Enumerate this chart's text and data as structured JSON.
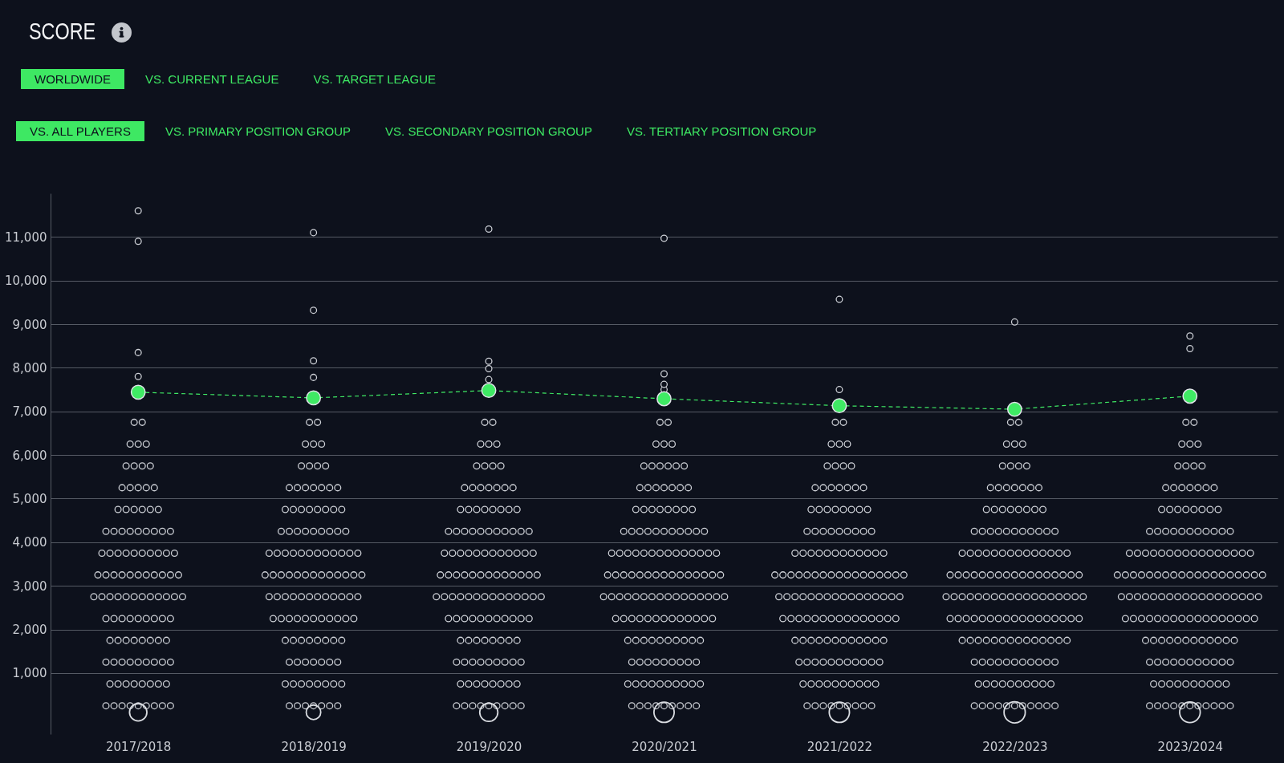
{
  "chart_data": {
    "type": "scatter",
    "title": "SCORE",
    "annotations": [
      "WORLDWIDE",
      "VS. CURRENT LEAGUE",
      "VS. TARGET LEAGUE",
      "VS. ALL PLAYERS",
      "VS. PRIMARY POSITION GROUP",
      "VS. SECONDARY POSITION GROUP",
      "VS. TERTIARY POSITION GROUP"
    ],
    "categories": [
      "2017/2018",
      "2018/2019",
      "2019/2020",
      "2020/2021",
      "2021/2022",
      "2022/2023",
      "2023/2024"
    ],
    "ylim": [
      -400,
      12000
    ],
    "yticks": [
      {
        "value": 1000,
        "label": "1,000"
      },
      {
        "value": 2000,
        "label": "2,000"
      },
      {
        "value": 3000,
        "label": "3,000"
      },
      {
        "value": 4000,
        "label": "4,000"
      },
      {
        "value": 5000,
        "label": "5,000"
      },
      {
        "value": 6000,
        "label": "6,000"
      },
      {
        "value": 7000,
        "label": "7,000"
      },
      {
        "value": 8000,
        "label": "8,000"
      },
      {
        "value": 9000,
        "label": "9,000"
      },
      {
        "value": 10000,
        "label": "10,000"
      },
      {
        "value": 11000,
        "label": "11,000"
      }
    ],
    "grid": "y",
    "marker": "circle",
    "series": [
      {
        "color": "#cdd0d6",
        "x": [
          "2017/2018",
          "2017/2018",
          "2017/2018",
          "2017/2018",
          "2017/2018",
          "2017/2018",
          "2017/2018",
          "2017/2018",
          "2017/2018",
          "2017/2018",
          "2017/2018",
          "2017/2018",
          "2017/2018",
          "2017/2018",
          "2017/2018",
          "2017/2018",
          "2017/2018",
          "2017/2018",
          "2017/2018",
          "2017/2018",
          "2017/2018",
          "2017/2018",
          "2017/2018",
          "2017/2018",
          "2017/2018",
          "2017/2018",
          "2017/2018",
          "2017/2018",
          "2017/2018",
          "2017/2018",
          "2017/2018",
          "2017/2018",
          "2017/2018",
          "2017/2018",
          "2017/2018",
          "2017/2018",
          "2017/2018",
          "2017/2018",
          "2017/2018",
          "2017/2018",
          "2017/2018",
          "2017/2018",
          "2017/2018",
          "2017/2018",
          "2017/2018",
          "2017/2018",
          "2017/2018",
          "2017/2018",
          "2017/2018",
          "2017/2018",
          "2017/2018",
          "2017/2018",
          "2017/2018",
          "2017/2018",
          "2017/2018",
          "2017/2018",
          "2017/2018",
          "2017/2018",
          "2017/2018",
          "2017/2018",
          "2017/2018",
          "2017/2018",
          "2017/2018",
          "2017/2018",
          "2017/2018",
          "2017/2018",
          "2017/2018",
          "2017/2018",
          "2017/2018",
          "2017/2018",
          "2017/2018",
          "2017/2018",
          "2017/2018",
          "2017/2018",
          "2017/2018",
          "2017/2018",
          "2017/2018",
          "2017/2018",
          "2017/2018",
          "2017/2018",
          "2017/2018",
          "2017/2018",
          "2017/2018",
          "2017/2018",
          "2017/2018",
          "2017/2018",
          "2017/2018",
          "2017/2018",
          "2017/2018",
          "2017/2018",
          "2017/2018",
          "2017/2018",
          "2017/2018",
          "2017/2018",
          "2017/2018",
          "2017/2018",
          "2017/2018",
          "2017/2018",
          "2017/2018",
          "2017/2018",
          "2017/2018",
          "2017/2018",
          "2017/2018",
          "2017/2018",
          "2017/2018",
          "2017/2018",
          "2017/2018",
          "2017/2018",
          "2017/2018"
        ],
        "values": [
          250,
          250,
          250,
          250,
          250,
          250,
          250,
          250,
          250,
          750,
          750,
          750,
          750,
          750,
          750,
          750,
          750,
          1250,
          1250,
          1250,
          1250,
          1250,
          1250,
          1250,
          1250,
          1250,
          1750,
          1750,
          1750,
          1750,
          1750,
          1750,
          1750,
          1750,
          2250,
          2250,
          2250,
          2250,
          2250,
          2250,
          2250,
          2250,
          2250,
          2750,
          2750,
          2750,
          2750,
          2750,
          2750,
          2750,
          2750,
          2750,
          2750,
          2750,
          2750,
          3250,
          3250,
          3250,
          3250,
          3250,
          3250,
          3250,
          3250,
          3250,
          3250,
          3250,
          3750,
          3750,
          3750,
          3750,
          3750,
          3750,
          3750,
          3750,
          3750,
          3750,
          4250,
          4250,
          4250,
          4250,
          4250,
          4250,
          4250,
          4250,
          4250,
          4750,
          4750,
          4750,
          4750,
          4750,
          4750,
          5250,
          5250,
          5250,
          5250,
          5250,
          5750,
          5750,
          5750,
          5750,
          6250,
          6250,
          6250,
          6750,
          6750,
          7800,
          8350,
          10900,
          11600
        ]
      },
      {
        "color": "#cdd0d6",
        "x": [
          "2018/2019",
          "2018/2019",
          "2018/2019",
          "2018/2019",
          "2018/2019",
          "2018/2019",
          "2018/2019",
          "2018/2019",
          "2018/2019",
          "2018/2019",
          "2018/2019",
          "2018/2019",
          "2018/2019",
          "2018/2019",
          "2018/2019",
          "2018/2019",
          "2018/2019",
          "2018/2019",
          "2018/2019",
          "2018/2019",
          "2018/2019",
          "2018/2019",
          "2018/2019",
          "2018/2019",
          "2018/2019",
          "2018/2019",
          "2018/2019",
          "2018/2019",
          "2018/2019",
          "2018/2019",
          "2018/2019",
          "2018/2019",
          "2018/2019",
          "2018/2019",
          "2018/2019",
          "2018/2019",
          "2018/2019",
          "2018/2019",
          "2018/2019",
          "2018/2019",
          "2018/2019",
          "2018/2019",
          "2018/2019",
          "2018/2019",
          "2018/2019",
          "2018/2019",
          "2018/2019",
          "2018/2019",
          "2018/2019",
          "2018/2019",
          "2018/2019",
          "2018/2019",
          "2018/2019",
          "2018/2019",
          "2018/2019",
          "2018/2019",
          "2018/2019",
          "2018/2019",
          "2018/2019",
          "2018/2019",
          "2018/2019",
          "2018/2019",
          "2018/2019",
          "2018/2019",
          "2018/2019",
          "2018/2019",
          "2018/2019",
          "2018/2019",
          "2018/2019",
          "2018/2019",
          "2018/2019",
          "2018/2019",
          "2018/2019",
          "2018/2019",
          "2018/2019",
          "2018/2019",
          "2018/2019",
          "2018/2019",
          "2018/2019",
          "2018/2019",
          "2018/2019",
          "2018/2019",
          "2018/2019",
          "2018/2019",
          "2018/2019",
          "2018/2019",
          "2018/2019",
          "2018/2019",
          "2018/2019",
          "2018/2019",
          "2018/2019",
          "2018/2019",
          "2018/2019",
          "2018/2019",
          "2018/2019",
          "2018/2019",
          "2018/2019",
          "2018/2019",
          "2018/2019",
          "2018/2019",
          "2018/2019",
          "2018/2019",
          "2018/2019",
          "2018/2019",
          "2018/2019",
          "2018/2019",
          "2018/2019",
          "2018/2019",
          "2018/2019",
          "2018/2019",
          "2018/2019",
          "2018/2019",
          "2018/2019",
          "2018/2019",
          "2018/2019"
        ],
        "values": [
          250,
          250,
          250,
          250,
          250,
          250,
          250,
          750,
          750,
          750,
          750,
          750,
          750,
          750,
          750,
          1250,
          1250,
          1250,
          1250,
          1250,
          1250,
          1250,
          1750,
          1750,
          1750,
          1750,
          1750,
          1750,
          1750,
          1750,
          2250,
          2250,
          2250,
          2250,
          2250,
          2250,
          2250,
          2250,
          2250,
          2250,
          2250,
          2750,
          2750,
          2750,
          2750,
          2750,
          2750,
          2750,
          2750,
          2750,
          2750,
          2750,
          2750,
          3250,
          3250,
          3250,
          3250,
          3250,
          3250,
          3250,
          3250,
          3250,
          3250,
          3250,
          3250,
          3250,
          3750,
          3750,
          3750,
          3750,
          3750,
          3750,
          3750,
          3750,
          3750,
          3750,
          3750,
          3750,
          4250,
          4250,
          4250,
          4250,
          4250,
          4250,
          4250,
          4250,
          4250,
          4750,
          4750,
          4750,
          4750,
          4750,
          4750,
          4750,
          4750,
          5250,
          5250,
          5250,
          5250,
          5250,
          5250,
          5250,
          5750,
          5750,
          5750,
          5750,
          6250,
          6250,
          6250,
          6750,
          6750,
          7780,
          8160,
          9320,
          11100
        ]
      },
      {
        "color": "#cdd0d6",
        "x": [
          "2019/2020",
          "2019/2020",
          "2019/2020",
          "2019/2020",
          "2019/2020",
          "2019/2020",
          "2019/2020",
          "2019/2020",
          "2019/2020",
          "2019/2020",
          "2019/2020",
          "2019/2020",
          "2019/2020",
          "2019/2020",
          "2019/2020",
          "2019/2020",
          "2019/2020",
          "2019/2020",
          "2019/2020",
          "2019/2020",
          "2019/2020",
          "2019/2020",
          "2019/2020",
          "2019/2020",
          "2019/2020",
          "2019/2020",
          "2019/2020",
          "2019/2020",
          "2019/2020",
          "2019/2020",
          "2019/2020",
          "2019/2020",
          "2019/2020",
          "2019/2020",
          "2019/2020",
          "2019/2020",
          "2019/2020",
          "2019/2020",
          "2019/2020",
          "2019/2020",
          "2019/2020",
          "2019/2020",
          "2019/2020",
          "2019/2020",
          "2019/2020",
          "2019/2020",
          "2019/2020",
          "2019/2020",
          "2019/2020",
          "2019/2020",
          "2019/2020",
          "2019/2020",
          "2019/2020",
          "2019/2020",
          "2019/2020",
          "2019/2020",
          "2019/2020",
          "2019/2020",
          "2019/2020",
          "2019/2020",
          "2019/2020",
          "2019/2020",
          "2019/2020",
          "2019/2020",
          "2019/2020",
          "2019/2020",
          "2019/2020",
          "2019/2020",
          "2019/2020",
          "2019/2020",
          "2019/2020",
          "2019/2020",
          "2019/2020",
          "2019/2020",
          "2019/2020",
          "2019/2020",
          "2019/2020",
          "2019/2020",
          "2019/2020",
          "2019/2020",
          "2019/2020",
          "2019/2020",
          "2019/2020",
          "2019/2020",
          "2019/2020",
          "2019/2020",
          "2019/2020",
          "2019/2020",
          "2019/2020",
          "2019/2020",
          "2019/2020",
          "2019/2020",
          "2019/2020",
          "2019/2020",
          "2019/2020",
          "2019/2020",
          "2019/2020",
          "2019/2020",
          "2019/2020",
          "2019/2020",
          "2019/2020",
          "2019/2020",
          "2019/2020",
          "2019/2020",
          "2019/2020",
          "2019/2020",
          "2019/2020",
          "2019/2020",
          "2019/2020",
          "2019/2020",
          "2019/2020",
          "2019/2020",
          "2019/2020",
          "2019/2020",
          "2019/2020",
          "2019/2020",
          "2019/2020",
          "2019/2020",
          "2019/2020",
          "2019/2020",
          "2019/2020",
          "2019/2020",
          "2019/2020"
        ],
        "values": [
          250,
          250,
          250,
          250,
          250,
          250,
          250,
          250,
          250,
          750,
          750,
          750,
          750,
          750,
          750,
          750,
          750,
          1250,
          1250,
          1250,
          1250,
          1250,
          1250,
          1250,
          1250,
          1250,
          1750,
          1750,
          1750,
          1750,
          1750,
          1750,
          1750,
          1750,
          2250,
          2250,
          2250,
          2250,
          2250,
          2250,
          2250,
          2250,
          2250,
          2250,
          2250,
          2750,
          2750,
          2750,
          2750,
          2750,
          2750,
          2750,
          2750,
          2750,
          2750,
          2750,
          2750,
          2750,
          2750,
          3250,
          3250,
          3250,
          3250,
          3250,
          3250,
          3250,
          3250,
          3250,
          3250,
          3250,
          3250,
          3250,
          3750,
          3750,
          3750,
          3750,
          3750,
          3750,
          3750,
          3750,
          3750,
          3750,
          3750,
          3750,
          4250,
          4250,
          4250,
          4250,
          4250,
          4250,
          4250,
          4250,
          4250,
          4250,
          4250,
          4750,
          4750,
          4750,
          4750,
          4750,
          4750,
          4750,
          4750,
          5250,
          5250,
          5250,
          5250,
          5250,
          5250,
          5250,
          5750,
          5750,
          5750,
          5750,
          6250,
          6250,
          6250,
          6750,
          6750,
          7730,
          7980,
          8150,
          11180
        ]
      },
      {
        "color": "#cdd0d6",
        "x": [
          "2020/2021",
          "2020/2021",
          "2020/2021",
          "2020/2021",
          "2020/2021",
          "2020/2021",
          "2020/2021",
          "2020/2021",
          "2020/2021",
          "2020/2021",
          "2020/2021",
          "2020/2021",
          "2020/2021",
          "2020/2021",
          "2020/2021",
          "2020/2021",
          "2020/2021",
          "2020/2021",
          "2020/2021",
          "2020/2021",
          "2020/2021",
          "2020/2021",
          "2020/2021",
          "2020/2021",
          "2020/2021",
          "2020/2021",
          "2020/2021",
          "2020/2021",
          "2020/2021",
          "2020/2021",
          "2020/2021",
          "2020/2021",
          "2020/2021",
          "2020/2021",
          "2020/2021",
          "2020/2021",
          "2020/2021",
          "2020/2021",
          "2020/2021",
          "2020/2021",
          "2020/2021",
          "2020/2021",
          "2020/2021",
          "2020/2021",
          "2020/2021",
          "2020/2021",
          "2020/2021",
          "2020/2021",
          "2020/2021",
          "2020/2021",
          "2020/2021",
          "2020/2021",
          "2020/2021",
          "2020/2021",
          "2020/2021",
          "2020/2021",
          "2020/2021",
          "2020/2021",
          "2020/2021",
          "2020/2021",
          "2020/2021",
          "2020/2021",
          "2020/2021",
          "2020/2021",
          "2020/2021",
          "2020/2021",
          "2020/2021",
          "2020/2021",
          "2020/2021",
          "2020/2021",
          "2020/2021",
          "2020/2021",
          "2020/2021",
          "2020/2021",
          "2020/2021",
          "2020/2021",
          "2020/2021",
          "2020/2021",
          "2020/2021",
          "2020/2021",
          "2020/2021",
          "2020/2021",
          "2020/2021",
          "2020/2021",
          "2020/2021",
          "2020/2021",
          "2020/2021",
          "2020/2021",
          "2020/2021",
          "2020/2021",
          "2020/2021",
          "2020/2021",
          "2020/2021",
          "2020/2021",
          "2020/2021",
          "2020/2021",
          "2020/2021",
          "2020/2021",
          "2020/2021",
          "2020/2021",
          "2020/2021",
          "2020/2021",
          "2020/2021",
          "2020/2021",
          "2020/2021",
          "2020/2021",
          "2020/2021",
          "2020/2021",
          "2020/2021",
          "2020/2021",
          "2020/2021",
          "2020/2021",
          "2020/2021",
          "2020/2021",
          "2020/2021",
          "2020/2021",
          "2020/2021",
          "2020/2021",
          "2020/2021",
          "2020/2021",
          "2020/2021",
          "2020/2021",
          "2020/2021",
          "2020/2021",
          "2020/2021",
          "2020/2021",
          "2020/2021",
          "2020/2021",
          "2020/2021",
          "2020/2021",
          "2020/2021",
          "2020/2021",
          "2020/2021",
          "2020/2021",
          "2020/2021",
          "2020/2021",
          "2020/2021"
        ],
        "values": [
          250,
          250,
          250,
          250,
          250,
          250,
          250,
          250,
          250,
          750,
          750,
          750,
          750,
          750,
          750,
          750,
          750,
          750,
          750,
          1250,
          1250,
          1250,
          1250,
          1250,
          1250,
          1250,
          1250,
          1250,
          1750,
          1750,
          1750,
          1750,
          1750,
          1750,
          1750,
          1750,
          1750,
          1750,
          2250,
          2250,
          2250,
          2250,
          2250,
          2250,
          2250,
          2250,
          2250,
          2250,
          2250,
          2250,
          2250,
          2750,
          2750,
          2750,
          2750,
          2750,
          2750,
          2750,
          2750,
          2750,
          2750,
          2750,
          2750,
          2750,
          2750,
          2750,
          2750,
          3250,
          3250,
          3250,
          3250,
          3250,
          3250,
          3250,
          3250,
          3250,
          3250,
          3250,
          3250,
          3250,
          3250,
          3250,
          3750,
          3750,
          3750,
          3750,
          3750,
          3750,
          3750,
          3750,
          3750,
          3750,
          3750,
          3750,
          3750,
          3750,
          4250,
          4250,
          4250,
          4250,
          4250,
          4250,
          4250,
          4250,
          4250,
          4250,
          4250,
          4750,
          4750,
          4750,
          4750,
          4750,
          4750,
          4750,
          4750,
          5250,
          5250,
          5250,
          5250,
          5250,
          5250,
          5250,
          5750,
          5750,
          5750,
          5750,
          5750,
          5750,
          6250,
          6250,
          6250,
          6750,
          6750,
          7500,
          7620,
          7860,
          10970
        ]
      },
      {
        "color": "#cdd0d6",
        "x": [
          "2021/2022",
          "2021/2022",
          "2021/2022",
          "2021/2022",
          "2021/2022",
          "2021/2022",
          "2021/2022",
          "2021/2022",
          "2021/2022",
          "2021/2022",
          "2021/2022",
          "2021/2022",
          "2021/2022",
          "2021/2022",
          "2021/2022",
          "2021/2022",
          "2021/2022",
          "2021/2022",
          "2021/2022",
          "2021/2022",
          "2021/2022",
          "2021/2022",
          "2021/2022",
          "2021/2022",
          "2021/2022",
          "2021/2022",
          "2021/2022",
          "2021/2022",
          "2021/2022",
          "2021/2022",
          "2021/2022",
          "2021/2022",
          "2021/2022",
          "2021/2022",
          "2021/2022",
          "2021/2022",
          "2021/2022",
          "2021/2022",
          "2021/2022",
          "2021/2022",
          "2021/2022",
          "2021/2022",
          "2021/2022",
          "2021/2022",
          "2021/2022",
          "2021/2022",
          "2021/2022",
          "2021/2022",
          "2021/2022",
          "2021/2022",
          "2021/2022",
          "2021/2022",
          "2021/2022",
          "2021/2022",
          "2021/2022",
          "2021/2022",
          "2021/2022",
          "2021/2022",
          "2021/2022",
          "2021/2022",
          "2021/2022",
          "2021/2022",
          "2021/2022",
          "2021/2022",
          "2021/2022",
          "2021/2022",
          "2021/2022",
          "2021/2022",
          "2021/2022",
          "2021/2022",
          "2021/2022",
          "2021/2022",
          "2021/2022",
          "2021/2022",
          "2021/2022",
          "2021/2022",
          "2021/2022",
          "2021/2022",
          "2021/2022",
          "2021/2022",
          "2021/2022",
          "2021/2022",
          "2021/2022",
          "2021/2022",
          "2021/2022",
          "2021/2022",
          "2021/2022",
          "2021/2022",
          "2021/2022",
          "2021/2022",
          "2021/2022",
          "2021/2022",
          "2021/2022",
          "2021/2022",
          "2021/2022",
          "2021/2022",
          "2021/2022",
          "2021/2022",
          "2021/2022",
          "2021/2022",
          "2021/2022",
          "2021/2022",
          "2021/2022",
          "2021/2022",
          "2021/2022",
          "2021/2022",
          "2021/2022",
          "2021/2022",
          "2021/2022",
          "2021/2022",
          "2021/2022",
          "2021/2022",
          "2021/2022",
          "2021/2022",
          "2021/2022",
          "2021/2022",
          "2021/2022",
          "2021/2022",
          "2021/2022",
          "2021/2022",
          "2021/2022",
          "2021/2022",
          "2021/2022",
          "2021/2022",
          "2021/2022",
          "2021/2022",
          "2021/2022",
          "2021/2022",
          "2021/2022",
          "2021/2022",
          "2021/2022",
          "2021/2022",
          "2021/2022",
          "2021/2022",
          "2021/2022",
          "2021/2022",
          "2021/2022"
        ],
        "values": [
          250,
          250,
          250,
          250,
          250,
          250,
          250,
          250,
          250,
          750,
          750,
          750,
          750,
          750,
          750,
          750,
          750,
          750,
          750,
          1250,
          1250,
          1250,
          1250,
          1250,
          1250,
          1250,
          1250,
          1250,
          1250,
          1250,
          1750,
          1750,
          1750,
          1750,
          1750,
          1750,
          1750,
          1750,
          1750,
          1750,
          1750,
          1750,
          2250,
          2250,
          2250,
          2250,
          2250,
          2250,
          2250,
          2250,
          2250,
          2250,
          2250,
          2250,
          2250,
          2250,
          2250,
          2750,
          2750,
          2750,
          2750,
          2750,
          2750,
          2750,
          2750,
          2750,
          2750,
          2750,
          2750,
          2750,
          2750,
          2750,
          2750,
          3250,
          3250,
          3250,
          3250,
          3250,
          3250,
          3250,
          3250,
          3250,
          3250,
          3250,
          3250,
          3250,
          3250,
          3250,
          3250,
          3250,
          3750,
          3750,
          3750,
          3750,
          3750,
          3750,
          3750,
          3750,
          3750,
          3750,
          3750,
          3750,
          4250,
          4250,
          4250,
          4250,
          4250,
          4250,
          4250,
          4250,
          4250,
          4750,
          4750,
          4750,
          4750,
          4750,
          4750,
          4750,
          4750,
          5250,
          5250,
          5250,
          5250,
          5250,
          5250,
          5250,
          5750,
          5750,
          5750,
          5750,
          6250,
          6250,
          6250,
          6750,
          6750,
          7500,
          9570
        ]
      },
      {
        "color": "#cdd0d6",
        "x": [
          "2022/2023",
          "2022/2023",
          "2022/2023",
          "2022/2023",
          "2022/2023",
          "2022/2023",
          "2022/2023",
          "2022/2023",
          "2022/2023",
          "2022/2023",
          "2022/2023",
          "2022/2023",
          "2022/2023",
          "2022/2023",
          "2022/2023",
          "2022/2023",
          "2022/2023",
          "2022/2023",
          "2022/2023",
          "2022/2023",
          "2022/2023",
          "2022/2023",
          "2022/2023",
          "2022/2023",
          "2022/2023",
          "2022/2023",
          "2022/2023",
          "2022/2023",
          "2022/2023",
          "2022/2023",
          "2022/2023",
          "2022/2023",
          "2022/2023",
          "2022/2023",
          "2022/2023",
          "2022/2023",
          "2022/2023",
          "2022/2023",
          "2022/2023",
          "2022/2023",
          "2022/2023",
          "2022/2023",
          "2022/2023",
          "2022/2023",
          "2022/2023",
          "2022/2023",
          "2022/2023",
          "2022/2023",
          "2022/2023",
          "2022/2023",
          "2022/2023",
          "2022/2023",
          "2022/2023",
          "2022/2023",
          "2022/2023",
          "2022/2023",
          "2022/2023",
          "2022/2023",
          "2022/2023",
          "2022/2023",
          "2022/2023",
          "2022/2023",
          "2022/2023",
          "2022/2023",
          "2022/2023",
          "2022/2023",
          "2022/2023",
          "2022/2023",
          "2022/2023",
          "2022/2023",
          "2022/2023",
          "2022/2023",
          "2022/2023",
          "2022/2023",
          "2022/2023",
          "2022/2023",
          "2022/2023",
          "2022/2023",
          "2022/2023",
          "2022/2023",
          "2022/2023",
          "2022/2023",
          "2022/2023",
          "2022/2023",
          "2022/2023",
          "2022/2023",
          "2022/2023",
          "2022/2023",
          "2022/2023",
          "2022/2023",
          "2022/2023",
          "2022/2023",
          "2022/2023",
          "2022/2023",
          "2022/2023",
          "2022/2023",
          "2022/2023",
          "2022/2023",
          "2022/2023",
          "2022/2023",
          "2022/2023",
          "2022/2023",
          "2022/2023",
          "2022/2023",
          "2022/2023",
          "2022/2023",
          "2022/2023",
          "2022/2023",
          "2022/2023",
          "2022/2023",
          "2022/2023",
          "2022/2023",
          "2022/2023",
          "2022/2023",
          "2022/2023",
          "2022/2023",
          "2022/2023",
          "2022/2023",
          "2022/2023",
          "2022/2023",
          "2022/2023",
          "2022/2023",
          "2022/2023",
          "2022/2023",
          "2022/2023",
          "2022/2023",
          "2022/2023",
          "2022/2023",
          "2022/2023",
          "2022/2023",
          "2022/2023",
          "2022/2023",
          "2022/2023",
          "2022/2023",
          "2022/2023",
          "2022/2023",
          "2022/2023",
          "2022/2023",
          "2022/2023",
          "2022/2023",
          "2022/2023",
          "2022/2023",
          "2022/2023",
          "2022/2023",
          "2022/2023",
          "2022/2023",
          "2022/2023",
          "2022/2023"
        ],
        "values": [
          250,
          250,
          250,
          250,
          250,
          250,
          250,
          250,
          250,
          250,
          250,
          750,
          750,
          750,
          750,
          750,
          750,
          750,
          750,
          750,
          750,
          1250,
          1250,
          1250,
          1250,
          1250,
          1250,
          1250,
          1250,
          1250,
          1250,
          1250,
          1750,
          1750,
          1750,
          1750,
          1750,
          1750,
          1750,
          1750,
          1750,
          1750,
          1750,
          1750,
          1750,
          1750,
          2250,
          2250,
          2250,
          2250,
          2250,
          2250,
          2250,
          2250,
          2250,
          2250,
          2250,
          2250,
          2250,
          2250,
          2250,
          2250,
          2250,
          2750,
          2750,
          2750,
          2750,
          2750,
          2750,
          2750,
          2750,
          2750,
          2750,
          2750,
          2750,
          2750,
          2750,
          2750,
          2750,
          2750,
          2750,
          3250,
          3250,
          3250,
          3250,
          3250,
          3250,
          3250,
          3250,
          3250,
          3250,
          3250,
          3250,
          3250,
          3250,
          3250,
          3250,
          3250,
          3750,
          3750,
          3750,
          3750,
          3750,
          3750,
          3750,
          3750,
          3750,
          3750,
          3750,
          3750,
          3750,
          3750,
          4250,
          4250,
          4250,
          4250,
          4250,
          4250,
          4250,
          4250,
          4250,
          4250,
          4250,
          4750,
          4750,
          4750,
          4750,
          4750,
          4750,
          4750,
          4750,
          5250,
          5250,
          5250,
          5250,
          5250,
          5250,
          5250,
          5750,
          5750,
          5750,
          5750,
          6250,
          6250,
          6250,
          6750,
          6750,
          9050
        ]
      },
      {
        "color": "#cdd0d6",
        "x": [
          "2023/2024",
          "2023/2024",
          "2023/2024",
          "2023/2024",
          "2023/2024",
          "2023/2024",
          "2023/2024",
          "2023/2024",
          "2023/2024",
          "2023/2024",
          "2023/2024",
          "2023/2024",
          "2023/2024",
          "2023/2024",
          "2023/2024",
          "2023/2024",
          "2023/2024",
          "2023/2024",
          "2023/2024",
          "2023/2024",
          "2023/2024",
          "2023/2024",
          "2023/2024",
          "2023/2024",
          "2023/2024",
          "2023/2024",
          "2023/2024",
          "2023/2024",
          "2023/2024",
          "2023/2024",
          "2023/2024",
          "2023/2024",
          "2023/2024",
          "2023/2024",
          "2023/2024",
          "2023/2024",
          "2023/2024",
          "2023/2024",
          "2023/2024",
          "2023/2024",
          "2023/2024",
          "2023/2024",
          "2023/2024",
          "2023/2024",
          "2023/2024",
          "2023/2024",
          "2023/2024",
          "2023/2024",
          "2023/2024",
          "2023/2024",
          "2023/2024",
          "2023/2024",
          "2023/2024",
          "2023/2024",
          "2023/2024",
          "2023/2024",
          "2023/2024",
          "2023/2024",
          "2023/2024",
          "2023/2024",
          "2023/2024",
          "2023/2024",
          "2023/2024",
          "2023/2024",
          "2023/2024",
          "2023/2024",
          "2023/2024",
          "2023/2024",
          "2023/2024",
          "2023/2024",
          "2023/2024",
          "2023/2024",
          "2023/2024",
          "2023/2024",
          "2023/2024",
          "2023/2024",
          "2023/2024",
          "2023/2024",
          "2023/2024",
          "2023/2024",
          "2023/2024",
          "2023/2024",
          "2023/2024",
          "2023/2024",
          "2023/2024",
          "2023/2024",
          "2023/2024",
          "2023/2024",
          "2023/2024",
          "2023/2024",
          "2023/2024",
          "2023/2024",
          "2023/2024",
          "2023/2024",
          "2023/2024",
          "2023/2024",
          "2023/2024",
          "2023/2024",
          "2023/2024",
          "2023/2024",
          "2023/2024",
          "2023/2024",
          "2023/2024",
          "2023/2024",
          "2023/2024",
          "2023/2024",
          "2023/2024",
          "2023/2024",
          "2023/2024",
          "2023/2024",
          "2023/2024",
          "2023/2024",
          "2023/2024",
          "2023/2024",
          "2023/2024",
          "2023/2024",
          "2023/2024",
          "2023/2024",
          "2023/2024",
          "2023/2024",
          "2023/2024",
          "2023/2024",
          "2023/2024",
          "2023/2024",
          "2023/2024",
          "2023/2024",
          "2023/2024",
          "2023/2024",
          "2023/2024",
          "2023/2024",
          "2023/2024",
          "2023/2024",
          "2023/2024",
          "2023/2024",
          "2023/2024",
          "2023/2024",
          "2023/2024",
          "2023/2024",
          "2023/2024",
          "2023/2024",
          "2023/2024",
          "2023/2024",
          "2023/2024",
          "2023/2024",
          "2023/2024",
          "2023/2024",
          "2023/2024",
          "2023/2024",
          "2023/2024",
          "2023/2024",
          "2023/2024"
        ],
        "values": [
          250,
          250,
          250,
          250,
          250,
          250,
          250,
          250,
          250,
          250,
          250,
          750,
          750,
          750,
          750,
          750,
          750,
          750,
          750,
          750,
          750,
          1250,
          1250,
          1250,
          1250,
          1250,
          1250,
          1250,
          1250,
          1250,
          1250,
          1250,
          1750,
          1750,
          1750,
          1750,
          1750,
          1750,
          1750,
          1750,
          1750,
          1750,
          1750,
          1750,
          2250,
          2250,
          2250,
          2250,
          2250,
          2250,
          2250,
          2250,
          2250,
          2250,
          2250,
          2250,
          2250,
          2250,
          2250,
          2250,
          2250,
          2750,
          2750,
          2750,
          2750,
          2750,
          2750,
          2750,
          2750,
          2750,
          2750,
          2750,
          2750,
          2750,
          2750,
          2750,
          2750,
          2750,
          2750,
          3250,
          3250,
          3250,
          3250,
          3250,
          3250,
          3250,
          3250,
          3250,
          3250,
          3250,
          3250,
          3250,
          3250,
          3250,
          3250,
          3250,
          3250,
          3250,
          3750,
          3750,
          3750,
          3750,
          3750,
          3750,
          3750,
          3750,
          3750,
          3750,
          3750,
          3750,
          3750,
          3750,
          3750,
          3750,
          4250,
          4250,
          4250,
          4250,
          4250,
          4250,
          4250,
          4250,
          4250,
          4250,
          4250,
          4750,
          4750,
          4750,
          4750,
          4750,
          4750,
          4750,
          4750,
          5250,
          5250,
          5250,
          5250,
          5250,
          5250,
          5250,
          5750,
          5750,
          5750,
          5750,
          6250,
          6250,
          6250,
          6750,
          6750,
          8440,
          8730
        ]
      },
      {
        "type": "bubble",
        "color": "#d9dce1",
        "values": [
          100,
          100,
          100,
          100,
          100,
          100,
          100
        ],
        "sizes": [
          0.67,
          0.47,
          0.73,
          0.91,
          0.91,
          1,
          0.94
        ]
      },
      {
        "type": "line",
        "color": "#3fea64",
        "line_style": "dashed",
        "values": [
          7440,
          7310,
          7480,
          7290,
          7130,
          7050,
          7350
        ]
      }
    ]
  }
}
